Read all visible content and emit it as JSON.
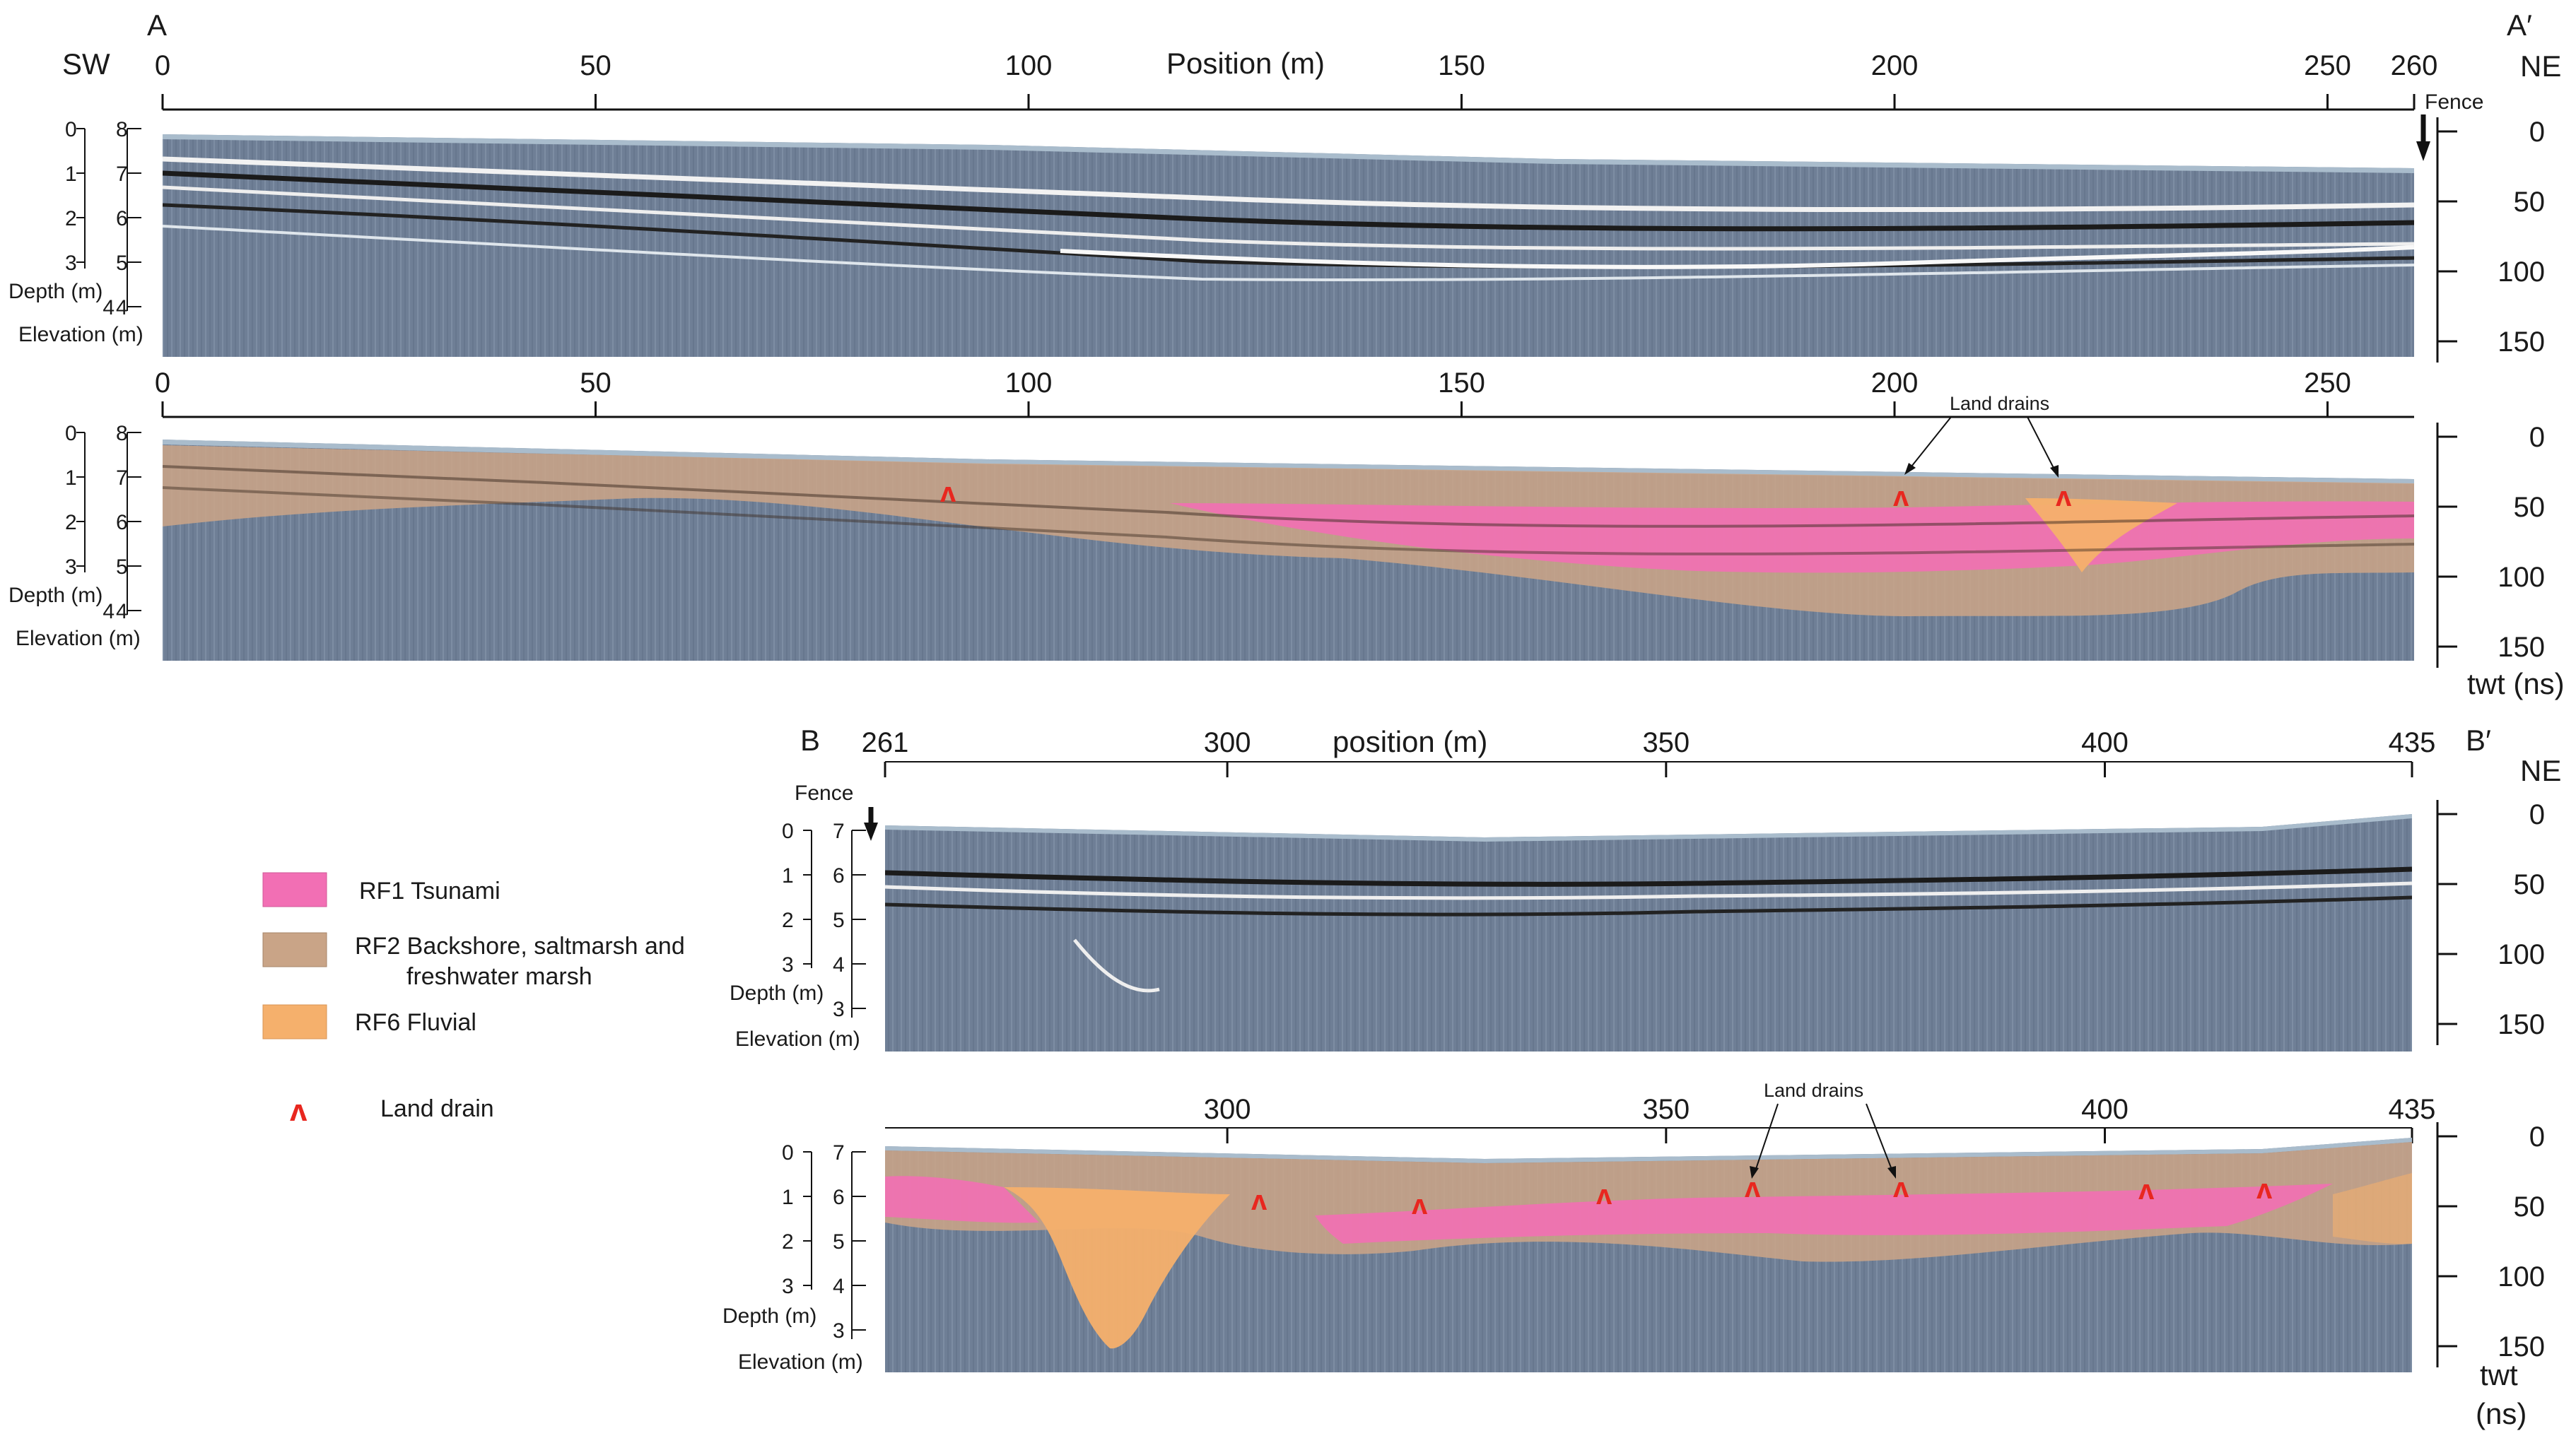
{
  "colors": {
    "background": "#ffffff",
    "radargram": "#6f7f96",
    "radargram_top": "#9fb0c2",
    "rf1": "#f26fb4",
    "rf2": "#c9a487",
    "rf6": "#f5b06c",
    "land_drain": "#e8271f",
    "axis": "#111111"
  },
  "sections": {
    "A": {
      "start_label": "A",
      "end_label": "A′",
      "left_dir": "SW",
      "right_dir": "NE",
      "axis_title": "Position (m)",
      "x_ticks": [
        "0",
        "50",
        "100",
        "150",
        "200",
        "250",
        "260"
      ],
      "x_range": [
        0,
        260
      ],
      "fence_label": "Fence",
      "lower_x_ticks": [
        "0",
        "50",
        "100",
        "150",
        "200",
        "250"
      ],
      "land_drains_label": "Land drains"
    },
    "B": {
      "start_label": "B",
      "end_label": "B′",
      "right_dir": "NE",
      "axis_title": "position (m)",
      "x_ticks": [
        "261",
        "300",
        "350",
        "400",
        "435"
      ],
      "x_range": [
        261,
        435
      ],
      "fence_label": "Fence",
      "lower_x_ticks": [
        "300",
        "350",
        "400",
        "435"
      ],
      "land_drains_label": "Land drains"
    }
  },
  "depth_axis": {
    "depth_label": "Depth (m)",
    "elevation_label": "Elevation (m)",
    "A_depth_ticks": [
      "0",
      "1",
      "2",
      "3",
      "4"
    ],
    "A_elev_ticks": [
      "8",
      "7",
      "6",
      "5",
      "4"
    ],
    "B_depth_ticks": [
      "0",
      "1",
      "2",
      "3"
    ],
    "B_elev_ticks": [
      "7",
      "6",
      "5",
      "4",
      "3"
    ]
  },
  "twt_axis": {
    "ticks": [
      "0",
      "50",
      "100",
      "150"
    ],
    "title_line1": "twt (ns)",
    "title_b_line1": "twt",
    "title_b_line2": "(ns)"
  },
  "legend": {
    "rf1": "RF1 Tsunami",
    "rf2_line1": "RF2  Backshore, saltmarsh and",
    "rf2_line2": "freshwater marsh",
    "rf6": "RF6  Fluvial",
    "drain_symbol": "ʌ",
    "drain": "Land drain"
  }
}
